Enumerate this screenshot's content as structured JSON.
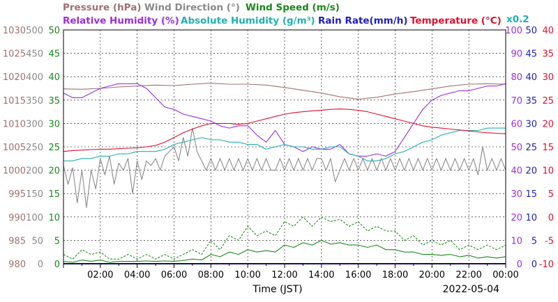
{
  "chart_data": {
    "type": "line",
    "xlabel": "Time (JST)",
    "date": "2022-05-04",
    "grid": true,
    "legend_top": [
      {
        "text": "Pressure (hPa)",
        "color": "#a07070"
      },
      {
        "text": "Wind Direction (°)",
        "color": "#8a8a8a"
      },
      {
        "text": "Wind Speed (m/s)",
        "color": "#1a8a1a"
      }
    ],
    "legend_bottom": [
      {
        "text": "Relative Humidity (%)",
        "color": "#9a2ee0"
      },
      {
        "text": "Absolute Humidity (g/m³)",
        "color": "#20b0b0"
      },
      {
        "text": "Rain Rate(mm/h)",
        "color": "#2020c0"
      },
      {
        "text": "Temperature (°C)",
        "color": "#e01030"
      }
    ],
    "scale_note": "x0.2",
    "x_ticks": [
      "02:00",
      "04:00",
      "06:00",
      "08:00",
      "10:00",
      "12:00",
      "14:00",
      "16:00",
      "18:00",
      "20:00",
      "22:00",
      "00:00"
    ],
    "x_tick_hours": [
      2,
      4,
      6,
      8,
      10,
      12,
      14,
      16,
      18,
      20,
      22,
      24
    ],
    "xlim": [
      0,
      24
    ],
    "axes_left": [
      {
        "name": "pressure",
        "color": "#a07070",
        "ticks": [
          "1030",
          "1025",
          "1020",
          "1015",
          "1010",
          "1005",
          "1000",
          "995",
          "990",
          "985",
          "980"
        ]
      },
      {
        "name": "wind_direction",
        "color": "#8a8a8a",
        "ticks": [
          "500",
          "450",
          "400",
          "350",
          "300",
          "250",
          "200",
          "150",
          "100",
          "50",
          "0"
        ]
      },
      {
        "name": "wind_speed",
        "color": "#1a8a1a",
        "ticks": [
          "50",
          "45",
          "40",
          "35",
          "30",
          "25",
          "20",
          "15",
          "10",
          "5",
          "0"
        ]
      }
    ],
    "axes_right": [
      {
        "name": "humidity",
        "color": "#9a2ee0",
        "ticks": [
          "100",
          "90",
          "80",
          "70",
          "60",
          "50",
          "40",
          "30",
          "20",
          "10",
          "0"
        ]
      },
      {
        "name": "rain_rate",
        "color": "#2020c0",
        "ticks": [
          "50",
          "45",
          "40",
          "35",
          "30",
          "25",
          "20",
          "15",
          "10",
          "5",
          "0"
        ]
      },
      {
        "name": "temperature",
        "color": "#e01030",
        "ticks": [
          "40",
          "35",
          "30",
          "25",
          "20",
          "15",
          "10",
          "5",
          "0",
          "-5",
          "-10"
        ]
      }
    ],
    "ylims": {
      "pressure": [
        980,
        1030
      ],
      "wind_direction": [
        0,
        500
      ],
      "wind_speed": [
        0,
        50
      ],
      "humidity": [
        0,
        100
      ],
      "rain_rate": [
        0,
        50
      ],
      "temperature": [
        -10,
        40
      ],
      "absolute_humidity_x0.2": [
        0,
        50
      ]
    },
    "series": [
      {
        "key": "pressure",
        "axis": "pressure",
        "color": "#a07070",
        "dash": "",
        "x": [
          0,
          1,
          2,
          3,
          4,
          5,
          6,
          7,
          8,
          9,
          10,
          11,
          12,
          13,
          14,
          15,
          16,
          17,
          18,
          19,
          20,
          21,
          22,
          23,
          24
        ],
        "y": [
          1017.4,
          1017.3,
          1017.5,
          1017.8,
          1018.0,
          1018.2,
          1018.1,
          1018.4,
          1018.6,
          1018.4,
          1018.4,
          1018.2,
          1017.7,
          1017.1,
          1016.5,
          1015.7,
          1015.2,
          1015.6,
          1016.3,
          1016.8,
          1017.4,
          1018.0,
          1018.4,
          1018.5,
          1018.4
        ]
      },
      {
        "key": "wind_direction",
        "axis": "wind_direction",
        "color": "#8a8a8a",
        "dash": "",
        "x": [
          0,
          0.25,
          0.5,
          0.75,
          1,
          1.25,
          1.5,
          1.75,
          2,
          2.25,
          2.5,
          2.75,
          3,
          3.25,
          3.5,
          3.75,
          4,
          4.25,
          4.5,
          4.75,
          5,
          5.25,
          5.5,
          5.75,
          6,
          6.25,
          6.5,
          6.75,
          7,
          7.25,
          7.5,
          7.75,
          8,
          8.25,
          8.5,
          8.75,
          9,
          9.25,
          9.5,
          9.75,
          10,
          10.25,
          10.5,
          10.75,
          11,
          11.25,
          11.5,
          11.75,
          12,
          12.25,
          12.5,
          12.75,
          13,
          13.25,
          13.5,
          13.75,
          14,
          14.25,
          14.5,
          14.75,
          15,
          15.25,
          15.5,
          15.75,
          16,
          16.25,
          16.5,
          16.75,
          17,
          17.25,
          17.5,
          17.75,
          18,
          18.25,
          18.5,
          18.75,
          19,
          19.25,
          19.5,
          19.75,
          20,
          20.25,
          20.5,
          20.75,
          21,
          21.25,
          21.5,
          21.75,
          22,
          22.25,
          22.5,
          22.75,
          23,
          23.25,
          23.5,
          23.75,
          24
        ],
        "y": [
          210,
          170,
          205,
          130,
          200,
          120,
          200,
          160,
          225,
          190,
          230,
          170,
          215,
          200,
          225,
          150,
          220,
          180,
          220,
          210,
          225,
          200,
          230,
          240,
          250,
          220,
          270,
          230,
          290,
          240,
          220,
          200,
          225,
          200,
          225,
          200,
          225,
          200,
          225,
          200,
          225,
          200,
          225,
          200,
          225,
          200,
          200,
          225,
          200,
          225,
          200,
          225,
          200,
          225,
          200,
          225,
          225,
          200,
          225,
          175,
          200,
          225,
          200,
          225,
          200,
          225,
          200,
          225,
          200,
          225,
          200,
          225,
          200,
          225,
          200,
          225,
          200,
          225,
          200,
          225,
          200,
          225,
          200,
          225,
          200,
          225,
          200,
          225,
          200,
          225,
          190,
          250,
          200,
          225,
          200,
          225,
          200
        ]
      },
      {
        "key": "wind_speed_max",
        "axis": "wind_speed",
        "color": "#1a8a1a",
        "dash": "3,2",
        "x": [
          0,
          0.5,
          1,
          1.5,
          2,
          2.5,
          3,
          3.5,
          4,
          4.5,
          5,
          5.5,
          6,
          6.5,
          7,
          7.5,
          8,
          8.5,
          9,
          9.5,
          10,
          10.5,
          11,
          11.5,
          12,
          12.5,
          13,
          13.5,
          14,
          14.5,
          15,
          15.5,
          16,
          16.5,
          17,
          17.5,
          18,
          18.5,
          19,
          19.5,
          20,
          20.5,
          21,
          21.5,
          22,
          22.5,
          23,
          23.5,
          24
        ],
        "y": [
          2,
          1,
          3,
          2,
          2.5,
          1,
          1,
          2,
          1,
          2,
          1,
          2,
          1,
          2,
          3,
          2,
          5,
          3,
          6,
          5,
          8,
          6,
          7,
          6,
          9,
          8,
          10,
          8,
          10,
          9,
          9.5,
          8,
          9,
          7,
          8,
          7,
          7,
          5,
          6,
          4,
          5,
          4,
          5,
          3,
          4,
          3,
          4,
          3,
          4
        ]
      },
      {
        "key": "wind_speed_avg",
        "axis": "wind_speed",
        "color": "#1a8a1a",
        "dash": "",
        "x": [
          0,
          0.5,
          1,
          1.5,
          2,
          2.5,
          3,
          3.5,
          4,
          4.5,
          5,
          5.5,
          6,
          6.5,
          7,
          7.5,
          8,
          8.5,
          9,
          9.5,
          10,
          10.5,
          11,
          11.5,
          12,
          12.5,
          13,
          13.5,
          14,
          14.5,
          15,
          15.5,
          16,
          16.5,
          17,
          17.5,
          18,
          18.5,
          19,
          19.5,
          20,
          20.5,
          21,
          21.5,
          22,
          22.5,
          23,
          23.5,
          24
        ],
        "y": [
          0.5,
          0.3,
          0.8,
          0.5,
          0.8,
          0.3,
          0.5,
          0.5,
          0.5,
          0.6,
          0.5,
          0.6,
          0.5,
          0.7,
          1,
          0.8,
          2,
          1.5,
          2.5,
          2,
          3,
          2.5,
          2.8,
          2.5,
          4,
          3.5,
          4.5,
          4,
          5,
          4.2,
          4.5,
          4,
          4,
          3.5,
          4,
          3,
          3,
          2.5,
          2.5,
          2,
          2,
          1.8,
          2,
          1.5,
          1.8,
          1.2,
          1.5,
          1.2,
          1.5
        ]
      },
      {
        "key": "humidity",
        "axis": "humidity",
        "color": "#9a2ee0",
        "dash": "",
        "x": [
          0,
          0.5,
          1,
          1.5,
          2,
          2.5,
          3,
          3.5,
          4,
          4.5,
          5,
          5.5,
          6,
          6.5,
          7,
          7.5,
          8,
          8.5,
          9,
          9.5,
          10,
          10.5,
          11,
          11.5,
          12,
          12.5,
          13,
          13.5,
          14,
          14.5,
          15,
          15.5,
          16,
          16.5,
          17,
          17.5,
          18,
          18.5,
          19,
          19.5,
          20,
          20.5,
          21,
          21.5,
          22,
          22.5,
          23,
          23.5,
          24
        ],
        "y": [
          73,
          71,
          71,
          73,
          75,
          76,
          77,
          77,
          77,
          75,
          71,
          67,
          66,
          64,
          63,
          62,
          61,
          59,
          58,
          59,
          59,
          55,
          52,
          57,
          51,
          50,
          48,
          50,
          49,
          49,
          51,
          47,
          46,
          46,
          47,
          46,
          48,
          54,
          60,
          66,
          70,
          72,
          73,
          74,
          74,
          75,
          76,
          76,
          77
        ]
      },
      {
        "key": "absolute_humidity",
        "axis": "absolute_humidity_x0.2",
        "color": "#20b0b0",
        "dash": "",
        "x": [
          0,
          0.5,
          1,
          1.5,
          2,
          2.5,
          3,
          3.5,
          4,
          4.5,
          5,
          5.5,
          6,
          6.5,
          7,
          7.5,
          8,
          8.5,
          9,
          9.5,
          10,
          10.5,
          11,
          11.5,
          12,
          12.5,
          13,
          13.5,
          14,
          14.5,
          15,
          15.5,
          16,
          16.5,
          17,
          17.5,
          18,
          18.5,
          19,
          19.5,
          20,
          20.5,
          21,
          21.5,
          22,
          22.5,
          23,
          23.5,
          24
        ],
        "y": [
          22,
          22,
          22.5,
          22.5,
          23,
          23,
          23.5,
          23.5,
          24,
          24,
          24,
          24.5,
          25.5,
          26,
          26.5,
          27,
          26.5,
          26.5,
          26,
          26,
          25.5,
          25.5,
          24.5,
          25,
          25.5,
          25,
          25,
          24.5,
          24.5,
          25,
          25,
          23.5,
          23,
          22,
          22,
          22.5,
          23.5,
          24,
          25,
          26,
          26.5,
          27.5,
          28,
          28.5,
          28.5,
          28.5,
          29,
          29,
          29
        ]
      },
      {
        "key": "temperature",
        "axis": "temperature",
        "color": "#e01030",
        "dash": "",
        "x": [
          0,
          0.5,
          1,
          1.5,
          2,
          2.5,
          3,
          3.5,
          4,
          4.5,
          5,
          5.5,
          6,
          6.5,
          7,
          7.5,
          8,
          8.5,
          9,
          9.5,
          10,
          10.5,
          11,
          11.5,
          12,
          12.5,
          13,
          13.5,
          14,
          14.5,
          15,
          15.5,
          16,
          16.5,
          17,
          17.5,
          18,
          18.5,
          19,
          19.5,
          20,
          20.5,
          21,
          21.5,
          22,
          22.5,
          23,
          23.5,
          24
        ],
        "y": [
          14,
          14.2,
          14.3,
          14.4,
          14.5,
          14.5,
          14.6,
          14.7,
          14.8,
          15,
          15.3,
          16,
          17,
          18,
          18.8,
          19.5,
          20,
          20,
          20,
          19.8,
          20,
          20.5,
          21,
          21.5,
          22,
          22.3,
          22.5,
          22.7,
          22.8,
          23,
          23.1,
          23,
          22.8,
          22.5,
          22,
          21.5,
          21,
          20.5,
          20,
          19.5,
          19.2,
          19,
          18.8,
          18.6,
          18.4,
          18.2,
          18,
          17.9,
          17.8
        ]
      },
      {
        "key": "rain_rate",
        "axis": "rain_rate",
        "color": "#2020c0",
        "dash": "",
        "x": [
          0,
          24
        ],
        "y": [
          0,
          0
        ]
      }
    ]
  }
}
